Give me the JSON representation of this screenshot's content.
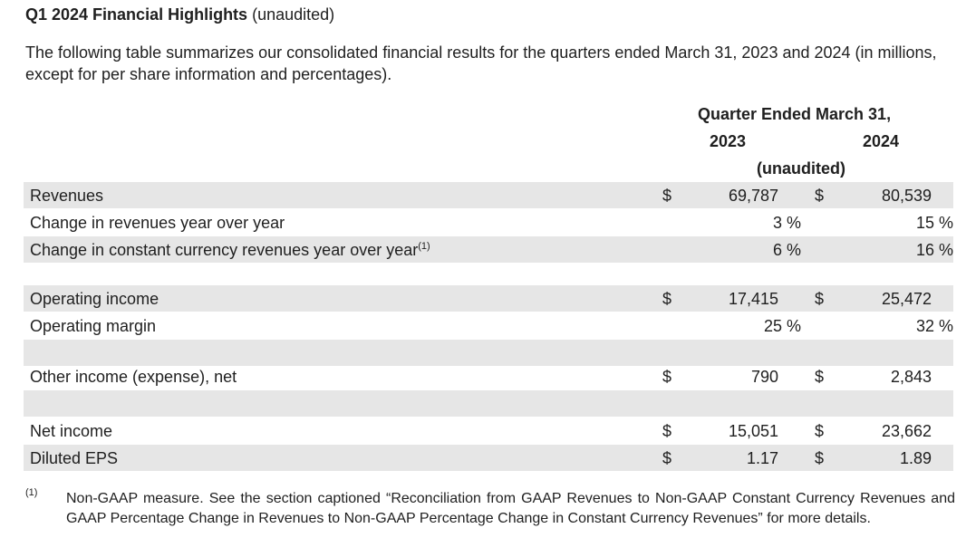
{
  "title": {
    "bold": "Q1 2024 Financial Highlights",
    "suffix": "(unaudited)"
  },
  "intro": "The following table summarizes our consolidated financial results for the quarters ended March 31, 2023 and 2024 (in millions, except for per share information and percentages).",
  "table": {
    "header": {
      "period": "Quarter Ended March 31,",
      "col1": "2023",
      "col2": "2024",
      "note": "(unaudited)"
    },
    "rows": {
      "revenues": {
        "label": "Revenues",
        "d1": "$",
        "v1": "69,787",
        "d2": "$",
        "v2": "80,539"
      },
      "rev_change": {
        "label": "Change in revenues year over year",
        "v1": "3 %",
        "v2": "15 %"
      },
      "cc_change": {
        "label": "Change in constant currency revenues year over year",
        "sup": "(1)",
        "v1": "6 %",
        "v2": "16 %"
      },
      "op_income": {
        "label": "Operating income",
        "d1": "$",
        "v1": "17,415",
        "d2": "$",
        "v2": "25,472"
      },
      "op_margin": {
        "label": "Operating margin",
        "v1": "25 %",
        "v2": "32 %"
      },
      "other_income": {
        "label": "Other income (expense), net",
        "d1": "$",
        "v1": "790",
        "d2": "$",
        "v2": "2,843"
      },
      "net_income": {
        "label": "Net income",
        "d1": "$",
        "v1": "15,051",
        "d2": "$",
        "v2": "23,662"
      },
      "eps": {
        "label": "Diluted EPS",
        "d1": "$",
        "v1": "1.17",
        "d2": "$",
        "v2": "1.89"
      }
    }
  },
  "footnote": {
    "mark": "(1)",
    "text": "Non-GAAP measure. See the section captioned “Reconciliation from GAAP Revenues to Non-GAAP Constant Currency Revenues and GAAP Percentage Change in Revenues to Non-GAAP Percentage Change in Constant Currency Revenues” for more details."
  }
}
